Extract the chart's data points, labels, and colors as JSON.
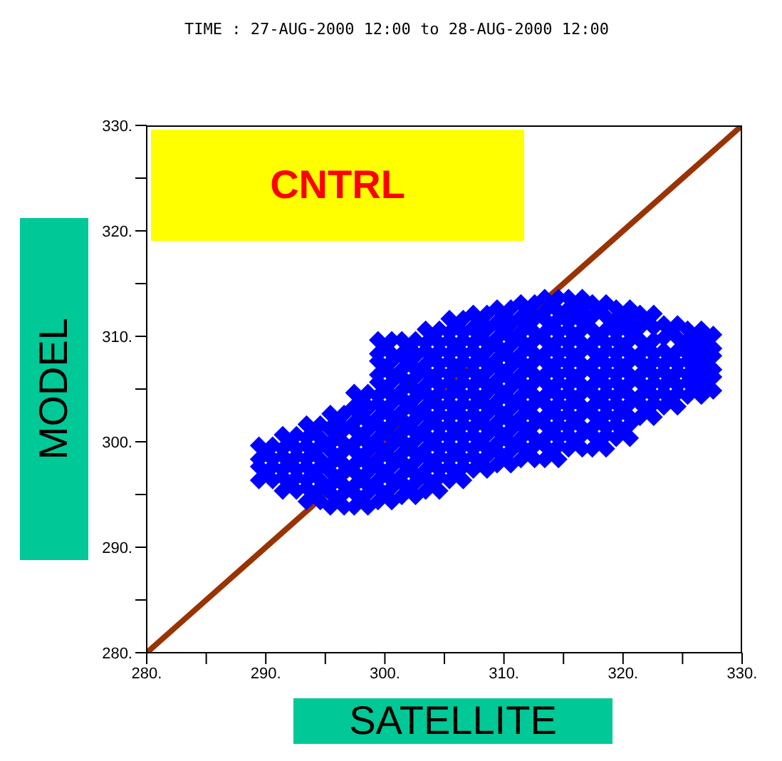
{
  "chart_data": {
    "type": "scatter",
    "title": "TIME : 27-AUG-2000 12:00 to 28-AUG-2000 12:00",
    "xlabel": "SATELLITE",
    "ylabel": "MODEL",
    "annotations": [
      "CNTRL"
    ],
    "xlim": [
      280,
      330
    ],
    "ylim": [
      280,
      330
    ],
    "xticks": [
      {
        "value": 280,
        "label": "280."
      },
      {
        "value": 285,
        "label": null
      },
      {
        "value": 290,
        "label": "290."
      },
      {
        "value": 295,
        "label": null
      },
      {
        "value": 300,
        "label": "300."
      },
      {
        "value": 305,
        "label": null
      },
      {
        "value": 310,
        "label": "310."
      },
      {
        "value": 315,
        "label": null
      },
      {
        "value": 320,
        "label": "320."
      },
      {
        "value": 325,
        "label": null
      },
      {
        "value": 330,
        "label": "330."
      }
    ],
    "yticks": [
      {
        "value": 280,
        "label": "280."
      },
      {
        "value": 285,
        "label": null
      },
      {
        "value": 290,
        "label": "290."
      },
      {
        "value": 295,
        "label": null
      },
      {
        "value": 300,
        "label": "300."
      },
      {
        "value": 305,
        "label": null
      },
      {
        "value": 310,
        "label": "310."
      },
      {
        "value": 315,
        "label": null
      },
      {
        "value": 320,
        "label": "320."
      },
      {
        "value": 325,
        "label": null
      },
      {
        "value": 330,
        "label": "330."
      }
    ],
    "grid": false,
    "legend": false,
    "series": [
      {
        "marker": "cross",
        "color": "#0000ff",
        "x": [
          290,
          290,
          292,
          292,
          292,
          294,
          294,
          294,
          294,
          296,
          296,
          296,
          296,
          296,
          298,
          298,
          298,
          298,
          298,
          298,
          300,
          300,
          300,
          300,
          300,
          300,
          300,
          300,
          302,
          302,
          302,
          302,
          302,
          302,
          302,
          302,
          304,
          304,
          304,
          304,
          304,
          304,
          304,
          304,
          306,
          306,
          306,
          306,
          306,
          306,
          306,
          306,
          308,
          308,
          308,
          308,
          308,
          308,
          308,
          308,
          310,
          310,
          310,
          310,
          310,
          310,
          310,
          310,
          312,
          312,
          312,
          312,
          312,
          312,
          312,
          312,
          314,
          314,
          314,
          314,
          314,
          314,
          314,
          314,
          316,
          316,
          316,
          316,
          316,
          316,
          316,
          316,
          318,
          318,
          318,
          318,
          318,
          318,
          318,
          320,
          320,
          320,
          320,
          320,
          320,
          320,
          322,
          322,
          322,
          322,
          322,
          324,
          324,
          324,
          324,
          326,
          326,
          326,
          326,
          327,
          327,
          327
        ],
        "values": [
          297,
          299,
          296,
          298,
          300,
          295,
          297,
          299,
          301,
          294.5,
          296.5,
          298.5,
          300.5,
          302,
          294.5,
          296.5,
          298.5,
          300.5,
          302.5,
          304,
          295,
          297,
          299,
          301,
          303,
          305,
          307,
          309,
          295.5,
          297.5,
          299.5,
          301.5,
          303.5,
          305.5,
          307.5,
          309,
          296,
          298,
          300,
          302,
          304,
          306,
          308,
          310,
          297,
          299,
          301,
          303,
          305,
          307,
          309,
          311,
          298,
          300,
          302,
          304,
          306,
          308,
          310,
          311.5,
          298.5,
          300.5,
          302.5,
          304.5,
          306.5,
          308.5,
          310.5,
          312,
          299,
          301,
          303,
          305,
          307,
          309,
          311,
          312.5,
          299,
          301,
          303,
          305,
          307,
          309,
          311,
          313,
          300,
          302,
          304,
          306,
          308,
          310,
          312,
          313,
          300,
          302,
          304,
          306,
          308,
          310,
          312.5,
          301,
          303,
          305,
          307,
          309,
          311,
          312,
          303,
          305,
          307,
          309,
          311.5,
          304,
          306,
          308,
          310.5,
          305,
          307,
          309,
          310,
          305.5,
          307.5,
          309.5
        ]
      },
      {
        "type": "line",
        "color": "#993300",
        "x": [
          280,
          330
        ],
        "values": [
          280,
          330
        ]
      }
    ]
  }
}
